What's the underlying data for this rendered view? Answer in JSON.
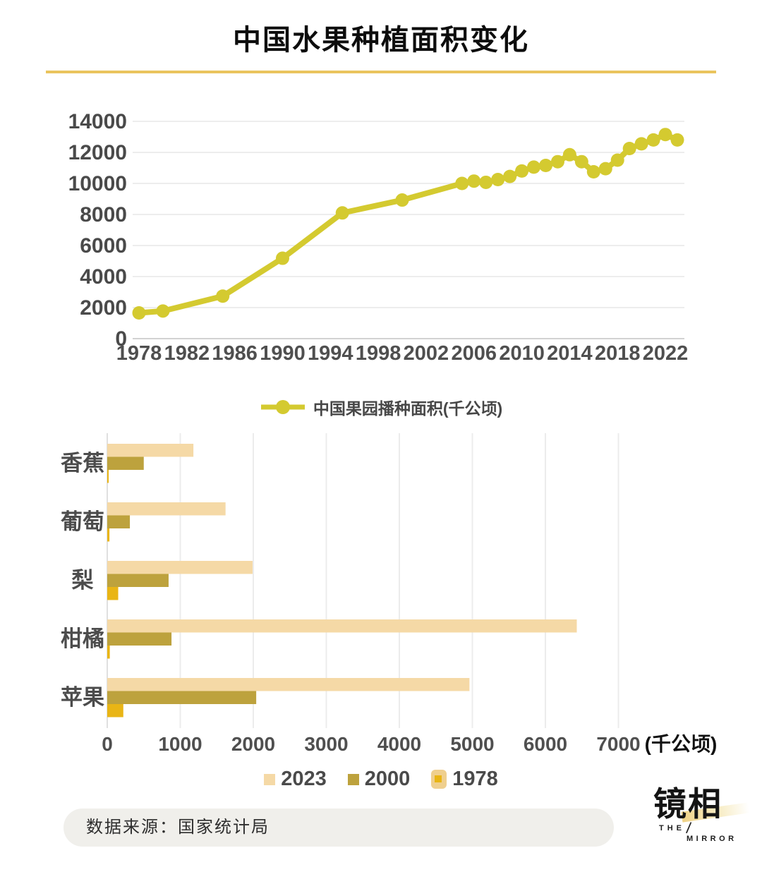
{
  "title": "中国水果种植面积变化",
  "theme": {
    "accent_gold": "#eac45e",
    "line_color": "#d4ca30",
    "axis_text_color": "#4a4a4a",
    "background": "#ffffff"
  },
  "chart_data": [
    {
      "type": "line",
      "series_name": "中国果园播种面积(千公顷)",
      "x": [
        1978,
        1980,
        1985,
        1990,
        1995,
        2000,
        2005,
        2006,
        2007,
        2008,
        2009,
        2010,
        2011,
        2012,
        2013,
        2014,
        2015,
        2016,
        2017,
        2018,
        2019,
        2020,
        2021,
        2022,
        2023
      ],
      "y": [
        1660,
        1780,
        2740,
        5180,
        8100,
        8930,
        10000,
        10150,
        10070,
        10250,
        10450,
        10800,
        11050,
        11160,
        11400,
        11850,
        11400,
        10750,
        10950,
        11500,
        12250,
        12550,
        12800,
        13150,
        12800
      ],
      "x_ticks": [
        1978,
        1982,
        1986,
        1990,
        1994,
        1998,
        2002,
        2006,
        2010,
        2014,
        2018,
        2022
      ],
      "y_ticks": [
        0,
        2000,
        4000,
        6000,
        8000,
        10000,
        12000,
        14000
      ],
      "ylim": [
        0,
        14000
      ],
      "grid": true,
      "legend_position": "bottom",
      "line_color": "#d4ca30"
    },
    {
      "type": "bar",
      "orientation": "horizontal",
      "categories": [
        "香蕉",
        "葡萄",
        "梨",
        "柑橘",
        "苹果"
      ],
      "series": [
        {
          "name": "2023",
          "color": "#f5d9a6",
          "values": [
            1180,
            1620,
            1990,
            6430,
            4960
          ]
        },
        {
          "name": "2000",
          "color": "#bda23d",
          "values": [
            500,
            310,
            840,
            880,
            2040
          ]
        },
        {
          "name": "1978",
          "color": "#e9b515",
          "framed": true,
          "values": [
            15,
            30,
            150,
            35,
            220
          ]
        }
      ],
      "x_ticks": [
        0,
        1000,
        2000,
        3000,
        4000,
        5000,
        6000,
        7000
      ],
      "xlim": [
        0,
        8000
      ],
      "unit_label": "(千公顷)",
      "grid": true,
      "legend_position": "bottom"
    }
  ],
  "footer": {
    "source_label": "数据来源：国家统计局"
  },
  "logo": {
    "cn": "镜相",
    "the": "THE",
    "slash": "/",
    "mirror": "MIRROR"
  }
}
